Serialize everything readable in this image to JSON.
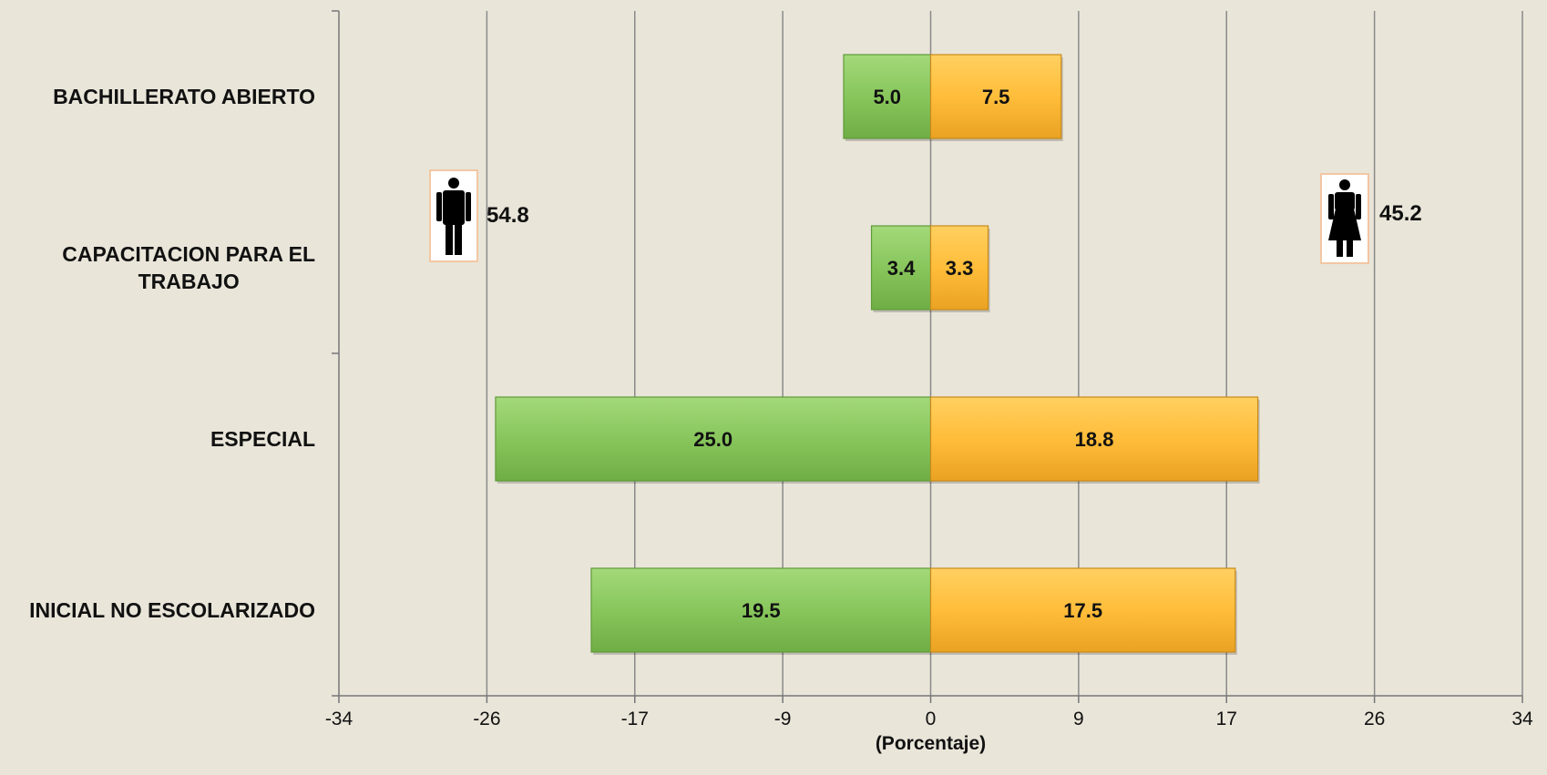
{
  "chart_data": {
    "type": "bar",
    "orientation": "horizontal",
    "xlabel": "(Porcentaje)",
    "xlim": [
      -34,
      34
    ],
    "x_ticks": [
      "-34",
      "-26",
      "-17",
      "-9",
      "0",
      "9",
      "17",
      "26",
      "34"
    ],
    "grid": true,
    "categories": [
      "BACHILLERATO ABIERTO",
      "CAPACITACION PARA EL TRABAJO",
      "ESPECIAL",
      "INICIAL NO ESCOLARIZADO"
    ],
    "series": [
      {
        "values": [
          5.0,
          3.4,
          25.0,
          19.5
        ],
        "labels": [
          "5.0",
          "3.4",
          "25.0",
          "19.5"
        ],
        "color": "#8cc860",
        "side": "left"
      },
      {
        "values": [
          7.5,
          3.3,
          18.8,
          17.5
        ],
        "labels": [
          "7.5",
          "3.3",
          "18.8",
          "17.5"
        ],
        "color": "#ffbd3a",
        "side": "right"
      }
    ],
    "annotations": [
      {
        "icon": "man-icon",
        "value": "54.8"
      },
      {
        "icon": "woman-icon",
        "value": "45.2"
      }
    ]
  }
}
